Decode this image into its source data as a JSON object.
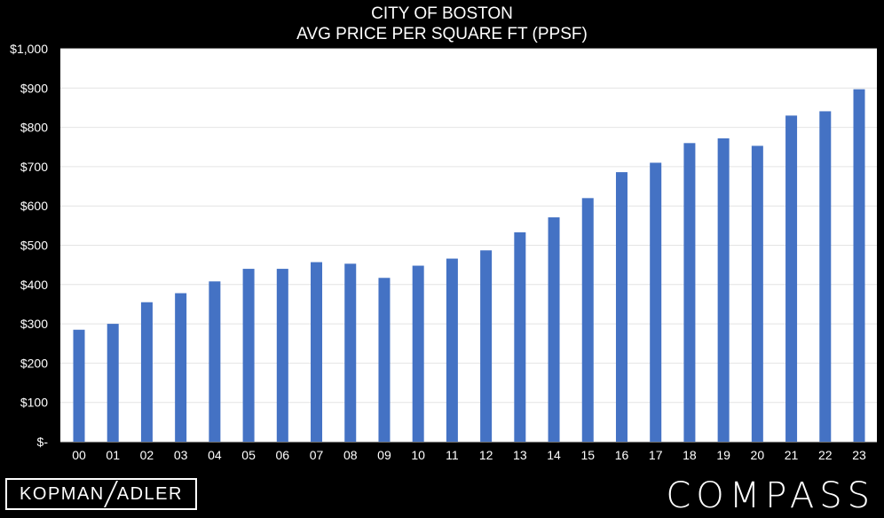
{
  "chart_data": {
    "type": "bar",
    "title_line1": "CITY OF BOSTON",
    "title_line2": "AVG PRICE PER SQUARE FT (PPSF)",
    "categories": [
      "00",
      "01",
      "02",
      "03",
      "04",
      "05",
      "06",
      "07",
      "08",
      "09",
      "10",
      "11",
      "12",
      "13",
      "14",
      "15",
      "16",
      "17",
      "18",
      "19",
      "20",
      "21",
      "22",
      "23"
    ],
    "values": [
      285,
      300,
      355,
      378,
      408,
      440,
      440,
      457,
      453,
      417,
      448,
      466,
      487,
      533,
      571,
      620,
      686,
      710,
      760,
      772,
      753,
      830,
      841,
      897
    ],
    "yticks": [
      "$-",
      "$100",
      "$200",
      "$300",
      "$400",
      "$500",
      "$600",
      "$700",
      "$800",
      "$900",
      "$1,000"
    ],
    "ylim": [
      0,
      1000
    ],
    "grid": true,
    "bar_color": "#4472C4",
    "plot_bg": "#FFFFFF",
    "page_bg": "#000000"
  },
  "branding": {
    "left_logo_part1": "KOPMAN",
    "left_logo_part2": "ADLER",
    "right_logo": "COMPASS"
  }
}
